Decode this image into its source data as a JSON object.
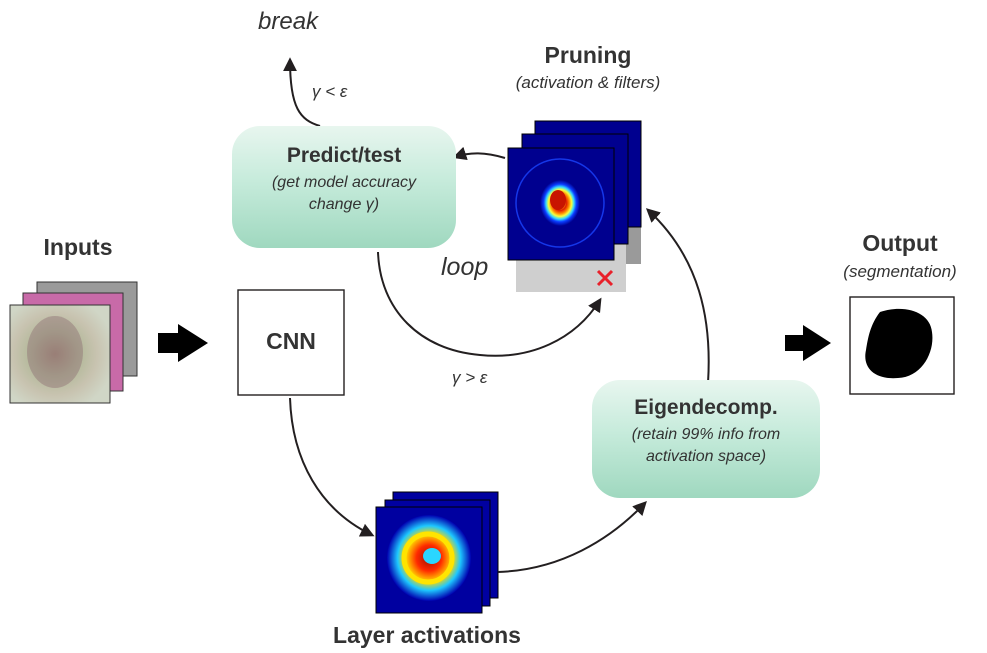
{
  "labels": {
    "break": "break",
    "gamma_lt": "γ < ε",
    "gamma_gt": "γ > ε",
    "loop": "loop",
    "pruning_title": "Pruning",
    "pruning_sub": "(activation & filters)",
    "inputs": "Inputs",
    "cnn": "CNN",
    "output_title": "Output",
    "output_sub": "(segmentation)",
    "layer_activations": "Layer activations"
  },
  "nodes": {
    "predict": {
      "title": "Predict/test",
      "line1": "(get model  accuracy",
      "line2": "change γ)"
    },
    "eigen": {
      "title": "Eigendecomp.",
      "line1": "(retain 99% info from",
      "line2": "activation space)"
    }
  },
  "colors": {
    "node_fill_top": "#e8f6ef",
    "node_fill_bottom": "#9fd8bf",
    "arrow": "#231f20",
    "prune_mark": "#e8202a",
    "heatmap_bg": "#00008f"
  }
}
